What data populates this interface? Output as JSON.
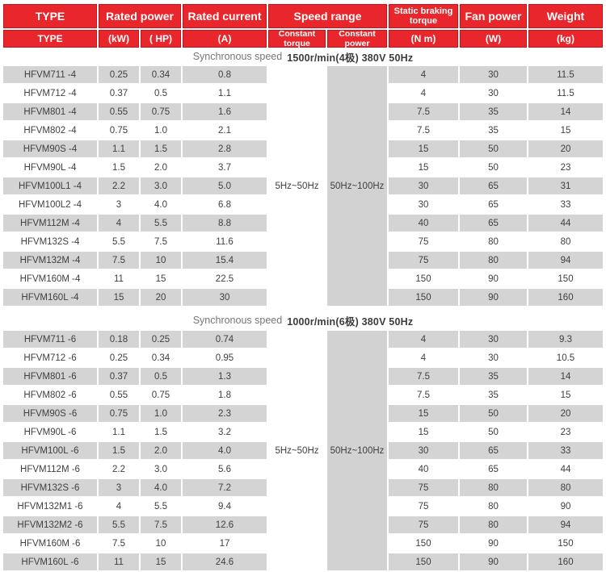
{
  "header": {
    "row1": {
      "type": "TYPE",
      "rated_power": "Rated power",
      "rated_current": "Rated current",
      "speed_range": "Speed range",
      "static_braking_torque": "Static braking torque",
      "fan_power": "Fan power",
      "weight": "Weight"
    },
    "row2": {
      "type": "TYPE",
      "kw": "(kW)",
      "hp": "( HP)",
      "a": "(A)",
      "constant_torque": "Constant torque",
      "constant_power": "Constant power",
      "nm": "(N m)",
      "w": "(W)",
      "kg": "(kg)"
    }
  },
  "colors": {
    "header_red": "#e8262b",
    "header_border_red": "#c4151b",
    "stripe_gray": "#d4d4d4",
    "header_text": "#ffffff",
    "body_text": "#3f3f3f"
  },
  "chart_data": [
    {
      "type": "table",
      "title": "Synchronous speed 1500r/min(4极) 380V 50Hz",
      "title_prefix": "Synchronous speed",
      "title_main": "1500r/min(4极) 380V 50Hz",
      "speed_constant_torque": "5Hz~50Hz",
      "speed_constant_power": "50Hz~100Hz",
      "columns": [
        "TYPE",
        "(kW)",
        "( HP)",
        "(A)",
        "Constant torque",
        "Constant power",
        "(N m)",
        "(W)",
        "(kg)"
      ],
      "rows": [
        {
          "type": "HFVM711 -4",
          "kw": "0.25",
          "hp": "0.34",
          "a": "0.8",
          "nm": "4",
          "w": "30",
          "kg": "11.5"
        },
        {
          "type": "HFVM712 -4",
          "kw": "0.37",
          "hp": "0.5",
          "a": "1.1",
          "nm": "4",
          "w": "30",
          "kg": "11.5"
        },
        {
          "type": "HFVM801 -4",
          "kw": "0.55",
          "hp": "0.75",
          "a": "1.6",
          "nm": "7.5",
          "w": "35",
          "kg": "14"
        },
        {
          "type": "HFVM802 -4",
          "kw": "0.75",
          "hp": "1.0",
          "a": "2.1",
          "nm": "7.5",
          "w": "35",
          "kg": "15"
        },
        {
          "type": "HFVM90S -4",
          "kw": "1.1",
          "hp": "1.5",
          "a": "2.8",
          "nm": "15",
          "w": "50",
          "kg": "20"
        },
        {
          "type": "HFVM90L -4",
          "kw": "1.5",
          "hp": "2.0",
          "a": "3.7",
          "nm": "15",
          "w": "50",
          "kg": "23"
        },
        {
          "type": "HFVM100L1 -4",
          "kw": "2.2",
          "hp": "3.0",
          "a": "5.0",
          "nm": "30",
          "w": "65",
          "kg": "31"
        },
        {
          "type": "HFVM100L2 -4",
          "kw": "3",
          "hp": "4.0",
          "a": "6.8",
          "nm": "30",
          "w": "65",
          "kg": "33"
        },
        {
          "type": "HFVM112M -4",
          "kw": "4",
          "hp": "5.5",
          "a": "8.8",
          "nm": "40",
          "w": "65",
          "kg": "44"
        },
        {
          "type": "HFVM132S -4",
          "kw": "5.5",
          "hp": "7.5",
          "a": "11.6",
          "nm": "75",
          "w": "80",
          "kg": "80"
        },
        {
          "type": "HFVM132M -4",
          "kw": "7.5",
          "hp": "10",
          "a": "15.4",
          "nm": "75",
          "w": "80",
          "kg": "94"
        },
        {
          "type": "HFVM160M -4",
          "kw": "11",
          "hp": "15",
          "a": "22.5",
          "nm": "150",
          "w": "90",
          "kg": "150"
        },
        {
          "type": "HFVM160L -4",
          "kw": "15",
          "hp": "20",
          "a": "30",
          "nm": "150",
          "w": "90",
          "kg": "160"
        }
      ]
    },
    {
      "type": "table",
      "title": "Synchronous speed 1000r/min(6极) 380V 50Hz",
      "title_prefix": "Synchronous speed",
      "title_main": "1000r/min(6极) 380V 50Hz",
      "speed_constant_torque": "5Hz~50Hz",
      "speed_constant_power": "50Hz~100Hz",
      "columns": [
        "TYPE",
        "(kW)",
        "( HP)",
        "(A)",
        "Constant torque",
        "Constant power",
        "(N m)",
        "(W)",
        "(kg)"
      ],
      "rows": [
        {
          "type": "HFVM711 -6",
          "kw": "0.18",
          "hp": "0.25",
          "a": "0.74",
          "nm": "4",
          "w": "30",
          "kg": "9.3"
        },
        {
          "type": "HFVM712 -6",
          "kw": "0.25",
          "hp": "0.34",
          "a": "0.95",
          "nm": "4",
          "w": "30",
          "kg": "10.5"
        },
        {
          "type": "HFVM801 -6",
          "kw": "0.37",
          "hp": "0.5",
          "a": "1.3",
          "nm": "7.5",
          "w": "35",
          "kg": "14"
        },
        {
          "type": "HFVM802 -6",
          "kw": "0.55",
          "hp": "0.75",
          "a": "1.8",
          "nm": "7.5",
          "w": "35",
          "kg": "15"
        },
        {
          "type": "HFVM90S -6",
          "kw": "0.75",
          "hp": "1.0",
          "a": "2.3",
          "nm": "15",
          "w": "50",
          "kg": "20"
        },
        {
          "type": "HFVM90L -6",
          "kw": "1.1",
          "hp": "1.5",
          "a": "3.2",
          "nm": "15",
          "w": "50",
          "kg": "23"
        },
        {
          "type": "HFVM100L -6",
          "kw": "1.5",
          "hp": "2.0",
          "a": "4.0",
          "nm": "30",
          "w": "65",
          "kg": "33"
        },
        {
          "type": "HFVM112M -6",
          "kw": "2.2",
          "hp": "3.0",
          "a": "5.6",
          "nm": "40",
          "w": "65",
          "kg": "44"
        },
        {
          "type": "HFVM132S -6",
          "kw": "3",
          "hp": "4.0",
          "a": "7.2",
          "nm": "75",
          "w": "80",
          "kg": "80"
        },
        {
          "type": "HFVM132M1 -6",
          "kw": "4",
          "hp": "5.5",
          "a": "9.4",
          "nm": "75",
          "w": "80",
          "kg": "90"
        },
        {
          "type": "HFVM132M2 -6",
          "kw": "5.5",
          "hp": "7.5",
          "a": "12.6",
          "nm": "75",
          "w": "80",
          "kg": "94"
        },
        {
          "type": "HFVM160M -6",
          "kw": "7.5",
          "hp": "10",
          "a": "17",
          "nm": "150",
          "w": "90",
          "kg": "150"
        },
        {
          "type": "HFVM160L -6",
          "kw": "11",
          "hp": "15",
          "a": "24.6",
          "nm": "150",
          "w": "90",
          "kg": "160"
        }
      ]
    }
  ]
}
